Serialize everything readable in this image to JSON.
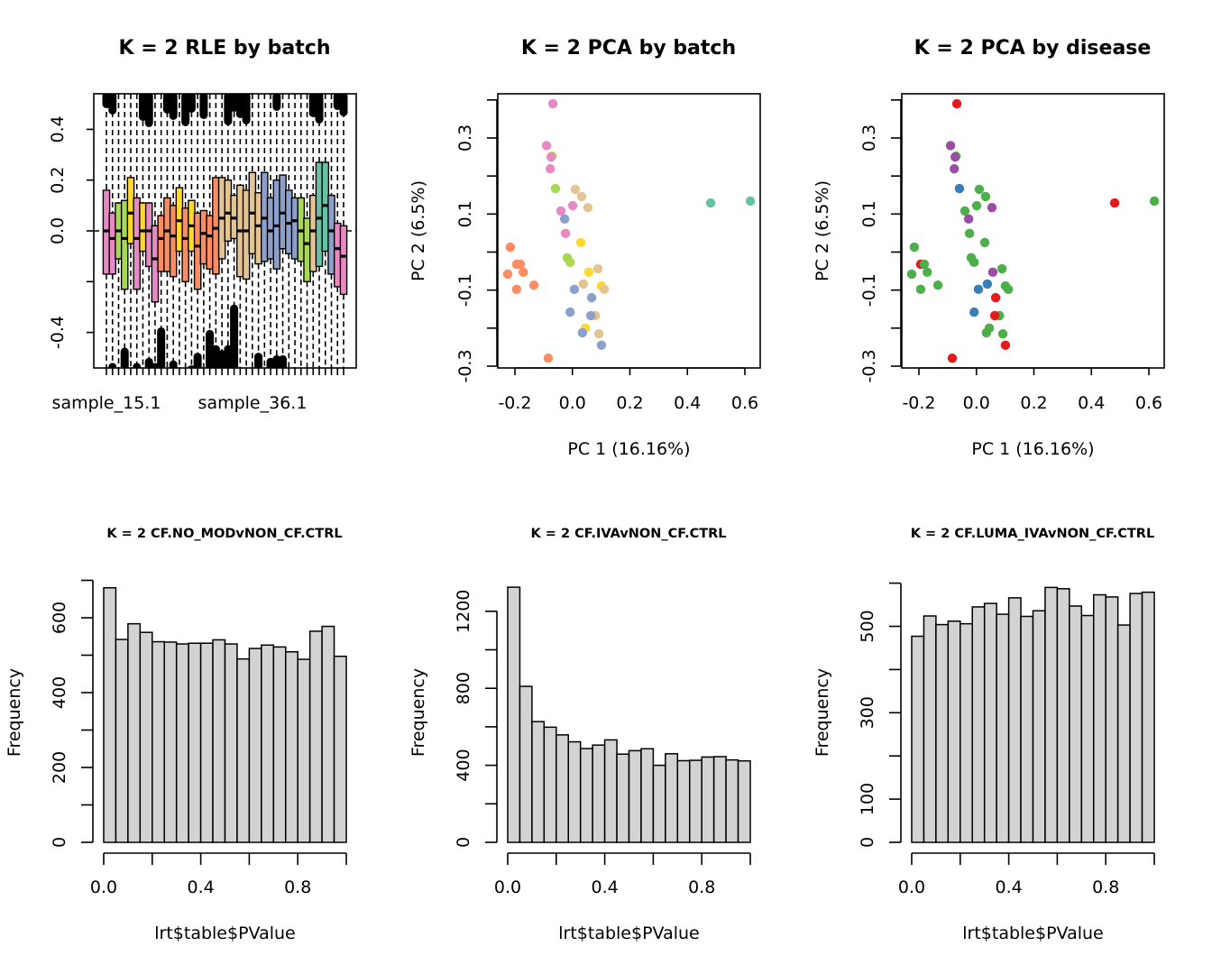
{
  "colors": {
    "batch_palette": {
      "teal": "#66C2A5",
      "orange": "#FC8D62",
      "blue": "#8DA0CB",
      "pink": "#E78AC3",
      "green": "#A6D854",
      "yellow": "#FFD92F",
      "tan": "#E5C494"
    },
    "disease_palette": {
      "red": "#E41A1C",
      "blue": "#377EB8",
      "green": "#4DAF4A",
      "purple": "#984EA3"
    },
    "hist_fill": "#D3D3D3"
  },
  "chart_data": [
    {
      "id": "rle",
      "type": "box",
      "title": "K = 2 RLE by batch",
      "xlabel": "",
      "ylabel": "",
      "ylim": [
        -0.54,
        0.54
      ],
      "yticks": [
        -0.4,
        -0.2,
        0.0,
        0.2,
        0.4
      ],
      "ytick_labels": [
        "-0.4",
        "",
        "0.0",
        "0.2",
        "0.4"
      ],
      "xtick_labels_shown": [
        "sample_15.1",
        "sample_36.1"
      ],
      "reference_line": 0.0,
      "boxes": [
        {
          "c": "pink",
          "q1": -0.17,
          "med": 0.0,
          "q3": 0.16
        },
        {
          "c": "pink",
          "q1": -0.17,
          "med": -0.03,
          "q3": 0.07
        },
        {
          "c": "green",
          "q1": -0.11,
          "med": 0.0,
          "q3": 0.11
        },
        {
          "c": "green",
          "q1": -0.23,
          "med": -0.03,
          "q3": 0.12
        },
        {
          "c": "yellow",
          "q1": -0.05,
          "med": 0.07,
          "q3": 0.21
        },
        {
          "c": "pink",
          "q1": -0.23,
          "med": -0.03,
          "q3": 0.13
        },
        {
          "c": "yellow",
          "q1": -0.08,
          "med": 0.0,
          "q3": 0.11
        },
        {
          "c": "pink",
          "q1": -0.14,
          "med": 0.0,
          "q3": 0.11
        },
        {
          "c": "pink",
          "q1": -0.28,
          "med": -0.11,
          "q3": 0.02
        },
        {
          "c": "orange",
          "q1": -0.16,
          "med": -0.03,
          "q3": 0.06
        },
        {
          "c": "orange",
          "q1": -0.16,
          "med": 0.0,
          "q3": 0.13
        },
        {
          "c": "orange",
          "q1": -0.18,
          "med": -0.02,
          "q3": 0.1
        },
        {
          "c": "yellow",
          "q1": -0.08,
          "med": 0.04,
          "q3": 0.17
        },
        {
          "c": "orange",
          "q1": -0.2,
          "med": -0.03,
          "q3": 0.09
        },
        {
          "c": "yellow",
          "q1": -0.08,
          "med": 0.02,
          "q3": 0.12
        },
        {
          "c": "orange",
          "q1": -0.23,
          "med": -0.06,
          "q3": 0.07
        },
        {
          "c": "orange",
          "q1": -0.13,
          "med": -0.01,
          "q3": 0.08
        },
        {
          "c": "orange",
          "q1": -0.15,
          "med": -0.02,
          "q3": 0.06
        },
        {
          "c": "orange",
          "q1": -0.17,
          "med": 0.01,
          "q3": 0.21
        },
        {
          "c": "tan",
          "q1": -0.11,
          "med": 0.05,
          "q3": 0.21
        },
        {
          "c": "tan",
          "q1": -0.04,
          "med": 0.07,
          "q3": 0.2
        },
        {
          "c": "tan",
          "q1": -0.03,
          "med": 0.05,
          "q3": 0.14
        },
        {
          "c": "tan",
          "q1": -0.18,
          "med": 0.0,
          "q3": 0.18
        },
        {
          "c": "tan",
          "q1": -0.19,
          "med": 0.0,
          "q3": 0.16
        },
        {
          "c": "tan",
          "q1": -0.09,
          "med": 0.07,
          "q3": 0.23
        },
        {
          "c": "tan",
          "q1": -0.13,
          "med": 0.02,
          "q3": 0.15
        },
        {
          "c": "blue",
          "q1": -0.12,
          "med": 0.05,
          "q3": 0.23
        },
        {
          "c": "blue",
          "q1": -0.11,
          "med": 0.0,
          "q3": 0.13
        },
        {
          "c": "blue",
          "q1": -0.15,
          "med": 0.02,
          "q3": 0.2
        },
        {
          "c": "blue",
          "q1": -0.07,
          "med": 0.07,
          "q3": 0.22
        },
        {
          "c": "blue",
          "q1": -0.09,
          "med": 0.03,
          "q3": 0.16
        },
        {
          "c": "blue",
          "q1": -0.11,
          "med": 0.04,
          "q3": 0.13
        },
        {
          "c": "green",
          "q1": -0.12,
          "med": 0.0,
          "q3": 0.13
        },
        {
          "c": "green",
          "q1": -0.2,
          "med": -0.05,
          "q3": 0.05
        },
        {
          "c": "tan",
          "q1": -0.16,
          "med": 0.0,
          "q3": 0.14
        },
        {
          "c": "teal",
          "q1": -0.14,
          "med": 0.05,
          "q3": 0.27
        },
        {
          "c": "teal",
          "q1": -0.08,
          "med": 0.1,
          "q3": 0.27
        },
        {
          "c": "blue",
          "q1": -0.17,
          "med": 0.0,
          "q3": 0.14
        },
        {
          "c": "pink",
          "q1": -0.22,
          "med": -0.07,
          "q3": 0.03
        },
        {
          "c": "pink",
          "q1": -0.25,
          "med": -0.1,
          "q3": 0.02
        }
      ],
      "upper_whisker_extends_beyond_top": [
        1,
        2,
        7,
        8,
        11,
        12,
        14,
        15,
        17,
        21,
        22,
        23,
        24,
        29,
        35,
        36,
        39,
        40
      ],
      "lower_outlier_heights": [
        -0.52,
        -0.46,
        -0.52,
        -0.5,
        -0.52,
        -0.38,
        -0.51,
        -0.53,
        -0.48,
        -0.39,
        -0.45,
        -0.47,
        -0.45,
        -0.29,
        -0.48,
        -0.5,
        -0.49,
        -0.49
      ]
    },
    {
      "id": "pca-batch",
      "type": "scatter",
      "title": "K = 2 PCA by batch",
      "xlabel": "PC 1 (16.16%)",
      "ylabel": "PC 2 (6.5%)",
      "xlim": [
        -0.26,
        0.65
      ],
      "ylim": [
        -0.3,
        0.42
      ],
      "xticks": [
        -0.2,
        0.0,
        0.2,
        0.4,
        0.6
      ],
      "xtick_labels": [
        "-0.2",
        "0.0",
        "0.2",
        "0.4",
        "0.6"
      ],
      "yticks": [
        -0.3,
        -0.2,
        -0.1,
        0.0,
        0.1,
        0.2,
        0.3,
        0.4
      ],
      "ytick_labels": [
        "-0.3",
        "",
        "-0.1",
        "",
        "0.1",
        "",
        "0.3",
        ""
      ],
      "points": [
        {
          "x": -0.068,
          "y": 0.39,
          "c": "pink"
        },
        {
          "x": -0.09,
          "y": 0.28,
          "c": "pink"
        },
        {
          "x": -0.071,
          "y": 0.252,
          "c": "green"
        },
        {
          "x": -0.074,
          "y": 0.25,
          "c": "pink"
        },
        {
          "x": -0.077,
          "y": 0.219,
          "c": "pink"
        },
        {
          "x": -0.059,
          "y": 0.167,
          "c": "green"
        },
        {
          "x": 0.01,
          "y": 0.165,
          "c": "tan"
        },
        {
          "x": 0.032,
          "y": 0.146,
          "c": "tan"
        },
        {
          "x": 0.001,
          "y": 0.122,
          "c": "pink"
        },
        {
          "x": 0.054,
          "y": 0.117,
          "c": "tan"
        },
        {
          "x": -0.04,
          "y": 0.108,
          "c": "pink"
        },
        {
          "x": -0.027,
          "y": 0.087,
          "c": "blue"
        },
        {
          "x": -0.024,
          "y": 0.049,
          "c": "pink"
        },
        {
          "x": 0.029,
          "y": 0.025,
          "c": "yellow"
        },
        {
          "x": -0.216,
          "y": 0.013,
          "c": "orange"
        },
        {
          "x": -0.018,
          "y": -0.015,
          "c": "green"
        },
        {
          "x": -0.008,
          "y": -0.027,
          "c": "green"
        },
        {
          "x": -0.194,
          "y": -0.032,
          "c": "orange"
        },
        {
          "x": -0.181,
          "y": -0.032,
          "c": "orange"
        },
        {
          "x": -0.171,
          "y": -0.053,
          "c": "orange"
        },
        {
          "x": -0.225,
          "y": -0.058,
          "c": "orange"
        },
        {
          "x": 0.089,
          "y": -0.044,
          "c": "tan"
        },
        {
          "x": 0.057,
          "y": -0.053,
          "c": "yellow"
        },
        {
          "x": -0.134,
          "y": -0.087,
          "c": "orange"
        },
        {
          "x": -0.194,
          "y": -0.098,
          "c": "orange"
        },
        {
          "x": 0.038,
          "y": -0.084,
          "c": "tan"
        },
        {
          "x": 0.101,
          "y": -0.089,
          "c": "yellow"
        },
        {
          "x": 0.111,
          "y": -0.098,
          "c": "tan"
        },
        {
          "x": 0.007,
          "y": -0.098,
          "c": "blue"
        },
        {
          "x": 0.067,
          "y": -0.12,
          "c": "blue"
        },
        {
          "x": -0.008,
          "y": -0.158,
          "c": "blue"
        },
        {
          "x": 0.08,
          "y": -0.167,
          "c": "tan"
        },
        {
          "x": 0.064,
          "y": -0.167,
          "c": "blue"
        },
        {
          "x": 0.045,
          "y": -0.2,
          "c": "yellow"
        },
        {
          "x": 0.035,
          "y": -0.212,
          "c": "blue"
        },
        {
          "x": 0.092,
          "y": -0.215,
          "c": "tan"
        },
        {
          "x": 0.101,
          "y": -0.245,
          "c": "blue"
        },
        {
          "x": -0.084,
          "y": -0.279,
          "c": "orange"
        },
        {
          "x": 0.481,
          "y": 0.129,
          "c": "teal"
        },
        {
          "x": 0.619,
          "y": 0.134,
          "c": "teal"
        }
      ]
    },
    {
      "id": "pca-disease",
      "type": "scatter",
      "title": "K = 2 PCA by disease",
      "xlabel": "PC 1 (16.16%)",
      "ylabel": "PC 2 (6.5%)",
      "xlim": [
        -0.26,
        0.65
      ],
      "ylim": [
        -0.3,
        0.42
      ],
      "xticks": [
        -0.2,
        0.0,
        0.2,
        0.4,
        0.6
      ],
      "xtick_labels": [
        "-0.2",
        "0.0",
        "0.2",
        "0.4",
        "0.6"
      ],
      "yticks": [
        -0.3,
        -0.2,
        -0.1,
        0.0,
        0.1,
        0.2,
        0.3,
        0.4
      ],
      "ytick_labels": [
        "-0.3",
        "",
        "-0.1",
        "",
        "0.1",
        "",
        "0.3",
        ""
      ],
      "points": [
        {
          "x": -0.068,
          "y": 0.39,
          "c": "red"
        },
        {
          "x": -0.071,
          "y": 0.252,
          "c": "green"
        },
        {
          "x": -0.09,
          "y": 0.28,
          "c": "purple"
        },
        {
          "x": -0.074,
          "y": 0.25,
          "c": "purple"
        },
        {
          "x": -0.077,
          "y": 0.219,
          "c": "purple"
        },
        {
          "x": -0.059,
          "y": 0.167,
          "c": "blue"
        },
        {
          "x": 0.01,
          "y": 0.165,
          "c": "green"
        },
        {
          "x": 0.032,
          "y": 0.146,
          "c": "green"
        },
        {
          "x": 0.001,
          "y": 0.122,
          "c": "green"
        },
        {
          "x": 0.054,
          "y": 0.117,
          "c": "purple"
        },
        {
          "x": -0.04,
          "y": 0.108,
          "c": "green"
        },
        {
          "x": -0.027,
          "y": 0.087,
          "c": "purple"
        },
        {
          "x": -0.024,
          "y": 0.049,
          "c": "green"
        },
        {
          "x": 0.029,
          "y": 0.025,
          "c": "green"
        },
        {
          "x": -0.216,
          "y": 0.013,
          "c": "green"
        },
        {
          "x": -0.018,
          "y": -0.015,
          "c": "green"
        },
        {
          "x": -0.008,
          "y": -0.027,
          "c": "green"
        },
        {
          "x": -0.194,
          "y": -0.032,
          "c": "red"
        },
        {
          "x": -0.181,
          "y": -0.032,
          "c": "green"
        },
        {
          "x": -0.171,
          "y": -0.053,
          "c": "green"
        },
        {
          "x": -0.225,
          "y": -0.058,
          "c": "green"
        },
        {
          "x": 0.089,
          "y": -0.044,
          "c": "green"
        },
        {
          "x": 0.057,
          "y": -0.053,
          "c": "purple"
        },
        {
          "x": -0.134,
          "y": -0.087,
          "c": "green"
        },
        {
          "x": -0.194,
          "y": -0.098,
          "c": "green"
        },
        {
          "x": 0.038,
          "y": -0.084,
          "c": "blue"
        },
        {
          "x": 0.101,
          "y": -0.089,
          "c": "green"
        },
        {
          "x": 0.111,
          "y": -0.098,
          "c": "green"
        },
        {
          "x": 0.007,
          "y": -0.098,
          "c": "blue"
        },
        {
          "x": 0.067,
          "y": -0.12,
          "c": "red"
        },
        {
          "x": -0.008,
          "y": -0.158,
          "c": "blue"
        },
        {
          "x": 0.08,
          "y": -0.167,
          "c": "green"
        },
        {
          "x": 0.064,
          "y": -0.167,
          "c": "red"
        },
        {
          "x": 0.045,
          "y": -0.2,
          "c": "green"
        },
        {
          "x": 0.035,
          "y": -0.212,
          "c": "green"
        },
        {
          "x": 0.092,
          "y": -0.215,
          "c": "green"
        },
        {
          "x": 0.101,
          "y": -0.245,
          "c": "red"
        },
        {
          "x": -0.084,
          "y": -0.279,
          "c": "red"
        },
        {
          "x": 0.481,
          "y": 0.129,
          "c": "red"
        },
        {
          "x": 0.619,
          "y": 0.134,
          "c": "green"
        }
      ]
    },
    {
      "id": "hist-nomod",
      "type": "bar",
      "subtype": "histogram",
      "title": "K = 2 CF.NO_MODvNON_CF.CTRL",
      "xlabel": "lrt$table$PValue",
      "ylabel": "Frequency",
      "xlim": [
        0,
        1
      ],
      "ylim": [
        0,
        700
      ],
      "bin_width": 0.05,
      "xticks": [
        0,
        0.2,
        0.4,
        0.6,
        0.8,
        1.0
      ],
      "xtick_labels": [
        "0.0",
        "",
        "0.4",
        "",
        "0.8",
        ""
      ],
      "yticks": [
        0,
        100,
        200,
        300,
        400,
        500,
        600,
        700
      ],
      "ytick_labels": [
        "0",
        "",
        "200",
        "",
        "400",
        "",
        "600",
        ""
      ],
      "values": [
        680,
        542,
        584,
        561,
        536,
        535,
        530,
        532,
        532,
        541,
        530,
        490,
        518,
        527,
        522,
        509,
        489,
        564,
        577,
        497
      ]
    },
    {
      "id": "hist-iva",
      "type": "bar",
      "subtype": "histogram",
      "title": "K = 2 CF.IVAvNON_CF.CTRL",
      "xlabel": "lrt$table$PValue",
      "ylabel": "Frequency",
      "xlim": [
        0,
        1
      ],
      "ylim": [
        0,
        1330
      ],
      "bin_width": 0.05,
      "xticks": [
        0,
        0.2,
        0.4,
        0.6,
        0.8,
        1.0
      ],
      "xtick_labels": [
        "0.0",
        "",
        "0.4",
        "",
        "0.8",
        ""
      ],
      "yticks": [
        0,
        200,
        400,
        600,
        800,
        1000,
        1200
      ],
      "ytick_labels": [
        "0",
        "",
        "400",
        "",
        "800",
        "",
        "1200"
      ],
      "values": [
        1325,
        810,
        627,
        598,
        558,
        522,
        487,
        505,
        532,
        458,
        476,
        486,
        400,
        460,
        424,
        426,
        443,
        445,
        428,
        423
      ]
    },
    {
      "id": "hist-luma",
      "type": "bar",
      "subtype": "histogram",
      "title": "K = 2 CF.LUMA_IVAvNON_CF.CTRL",
      "xlabel": "lrt$table$PValue",
      "ylabel": "Frequency",
      "xlim": [
        0,
        1
      ],
      "ylim": [
        0,
        600
      ],
      "bin_width": 0.05,
      "xticks": [
        0,
        0.2,
        0.4,
        0.6,
        0.8,
        1.0
      ],
      "xtick_labels": [
        "0.0",
        "",
        "0.4",
        "",
        "0.8",
        ""
      ],
      "yticks": [
        0,
        100,
        200,
        300,
        400,
        500,
        600
      ],
      "ytick_labels": [
        "0",
        "100",
        "",
        "300",
        "",
        "500",
        ""
      ],
      "values": [
        477,
        524,
        504,
        512,
        506,
        545,
        553,
        528,
        566,
        523,
        536,
        590,
        587,
        547,
        525,
        573,
        568,
        503,
        576,
        579
      ]
    }
  ]
}
